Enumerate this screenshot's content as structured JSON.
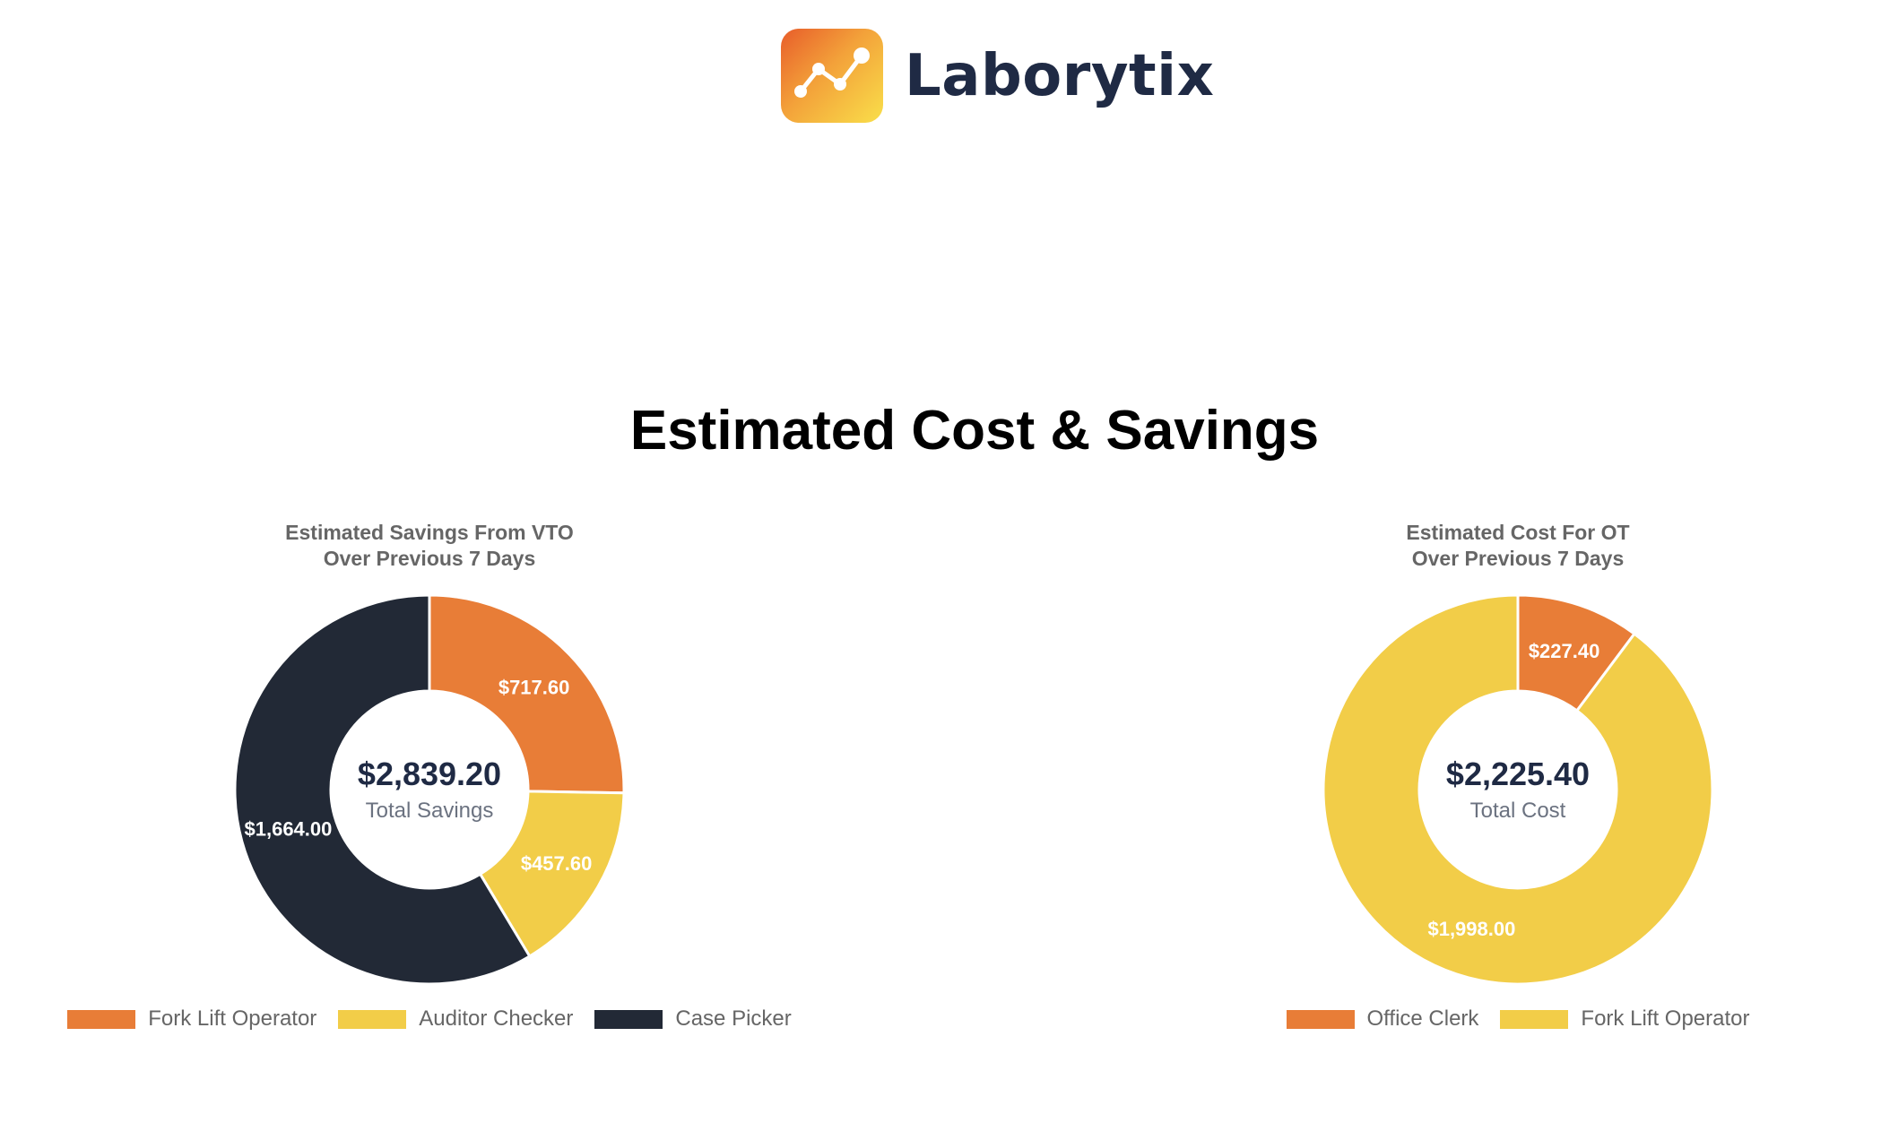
{
  "brand": {
    "name": "Laborytix"
  },
  "page": {
    "title": "Estimated Cost & Savings"
  },
  "colors": {
    "orange": "#e87d37",
    "yellow": "#f2cd48",
    "dark": "#222936"
  },
  "chart_data": [
    {
      "type": "pie",
      "variant": "doughnut",
      "title": [
        "Estimated Savings From VTO",
        "Over Previous 7 Days"
      ],
      "categories": [
        "Fork Lift Operator",
        "Auditor Checker",
        "Case Picker"
      ],
      "values": [
        717.6,
        457.6,
        1664.0
      ],
      "labels": [
        "$717.60",
        "$457.60",
        "$1,664.00"
      ],
      "colors": [
        "#e87d37",
        "#f2cd48",
        "#222936"
      ],
      "center_value": "$2,839.20",
      "center_label": "Total Savings",
      "legend": "bottom"
    },
    {
      "type": "pie",
      "variant": "doughnut",
      "title": [
        "Estimated Cost For OT",
        "Over Previous 7 Days"
      ],
      "categories": [
        "Office Clerk",
        "Fork Lift Operator"
      ],
      "values": [
        227.4,
        1998.0
      ],
      "labels": [
        "$227.40",
        "$1,998.00"
      ],
      "colors": [
        "#e87d37",
        "#f2cd48"
      ],
      "center_value": "$2,225.40",
      "center_label": "Total Cost",
      "legend": "bottom"
    }
  ]
}
